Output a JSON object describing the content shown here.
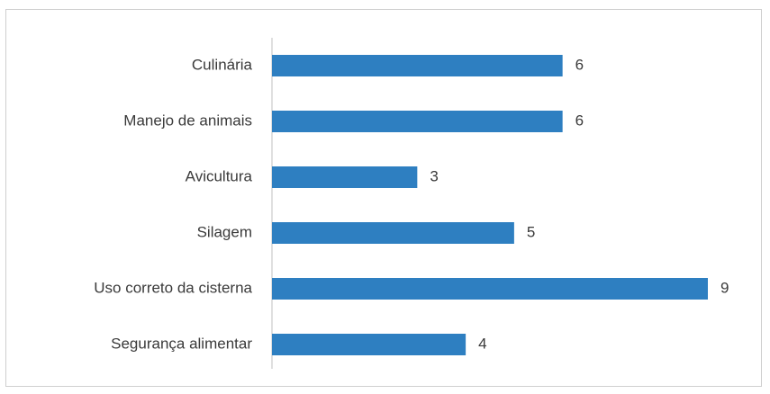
{
  "chart_data": {
    "type": "bar",
    "orientation": "horizontal",
    "categories": [
      "Culinária",
      "Manejo de animais",
      "Avicultura",
      "Silagem",
      "Uso correto da cisterna",
      "Segurança alimentar"
    ],
    "values": [
      6,
      6,
      3,
      5,
      9,
      4
    ],
    "data_labels": [
      "6",
      "6",
      "3",
      "5",
      "9",
      "4"
    ],
    "xlim": [
      0,
      9
    ],
    "grid": false,
    "legend": "none",
    "bar_color": "#2e7fc1",
    "title": "",
    "xlabel": "",
    "ylabel": ""
  }
}
